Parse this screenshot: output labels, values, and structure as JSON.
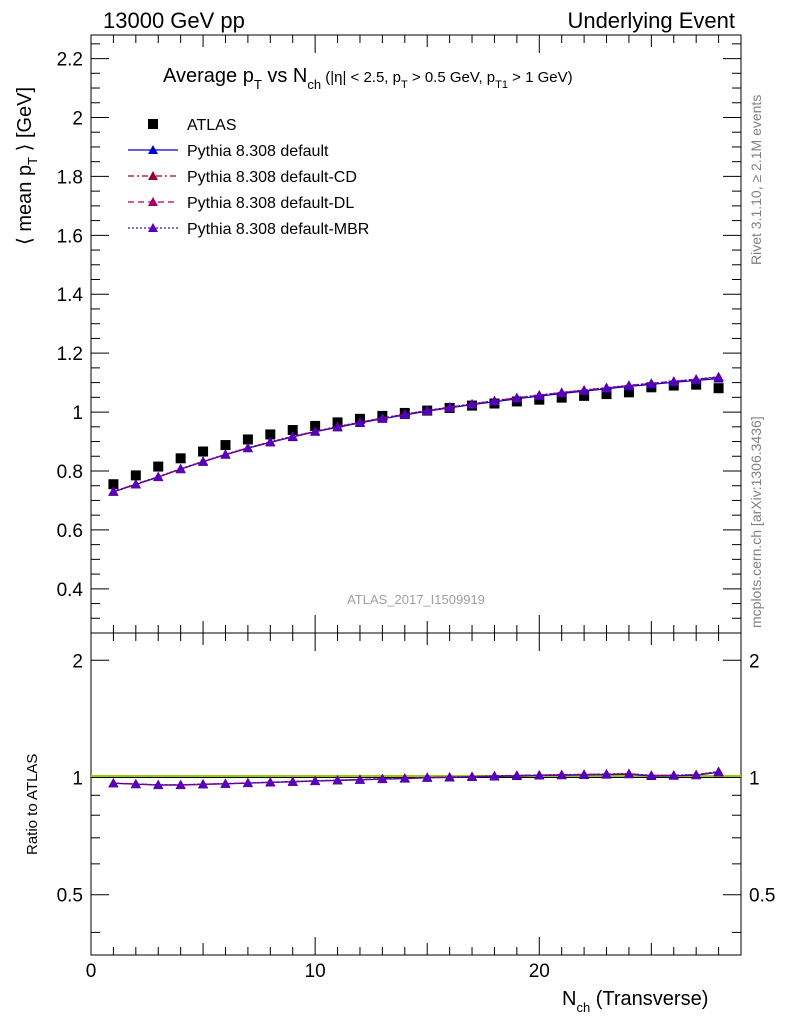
{
  "header": {
    "left": "13000 GeV pp",
    "right": "Underlying Event"
  },
  "side_labels": {
    "rivet": "Rivet 3.1.10, ≥ 2.1M events",
    "mcplots": "mcplots.cern.ch [arXiv:1306.3436]"
  },
  "watermark": "ATLAS_2017_I1509919",
  "colors": {
    "atlas": "#000000",
    "default": "#0000cc",
    "cd": "#990033",
    "dl": "#aa0066",
    "mbr": "#5500bb",
    "ratio_reference": "#99cc00"
  },
  "chart_data": [
    {
      "type": "scatter",
      "title": "Average p_T vs N_ch (|η| < 2.5, p_T > 0.5 GeV, p_T1 > 1 GeV)",
      "xlabel": "N_ch (Transverse)",
      "ylabel": "⟨ mean p_T ⟩ [GeV]",
      "xlim": [
        0,
        29
      ],
      "ylim": [
        0.25,
        2.28
      ],
      "yticks": [
        0.4,
        0.6,
        0.8,
        1,
        1.2,
        1.4,
        1.6,
        1.8,
        2,
        2.2
      ],
      "xticks": [
        0,
        10,
        20
      ],
      "legend_position": "top-left",
      "x": [
        1,
        2,
        3,
        4,
        5,
        6,
        7,
        8,
        9,
        10,
        11,
        12,
        13,
        14,
        15,
        16,
        17,
        18,
        19,
        20,
        21,
        22,
        23,
        24,
        25,
        26,
        27,
        28
      ],
      "series": [
        {
          "name": "ATLAS",
          "style": "square-marker",
          "values": [
            0.755,
            0.785,
            0.815,
            0.843,
            0.866,
            0.888,
            0.907,
            0.924,
            0.939,
            0.953,
            0.965,
            0.977,
            0.987,
            0.997,
            1.005,
            1.014,
            1.022,
            1.029,
            1.036,
            1.042,
            1.049,
            1.055,
            1.061,
            1.067,
            1.084,
            1.09,
            1.093,
            1.081
          ]
        },
        {
          "name": "Pythia 8.308 default",
          "style": "solid",
          "values": [
            0.729,
            0.754,
            0.779,
            0.806,
            0.831,
            0.855,
            0.877,
            0.897,
            0.915,
            0.933,
            0.948,
            0.963,
            0.977,
            0.99,
            1.003,
            1.014,
            1.025,
            1.035,
            1.045,
            1.054,
            1.063,
            1.071,
            1.079,
            1.087,
            1.094,
            1.101,
            1.107,
            1.114
          ]
        },
        {
          "name": "Pythia 8.308 default-CD",
          "style": "dash-dot",
          "values": [
            0.73,
            0.755,
            0.78,
            0.807,
            0.832,
            0.856,
            0.878,
            0.898,
            0.917,
            0.934,
            0.95,
            0.965,
            0.979,
            0.992,
            1.005,
            1.016,
            1.027,
            1.038,
            1.048,
            1.057,
            1.066,
            1.074,
            1.082,
            1.09,
            1.097,
            1.104,
            1.111,
            1.118
          ]
        },
        {
          "name": "Pythia 8.308 default-DL",
          "style": "dashed",
          "values": [
            0.73,
            0.755,
            0.78,
            0.807,
            0.832,
            0.856,
            0.878,
            0.898,
            0.917,
            0.934,
            0.95,
            0.965,
            0.979,
            0.992,
            1.005,
            1.016,
            1.027,
            1.038,
            1.048,
            1.057,
            1.066,
            1.074,
            1.082,
            1.09,
            1.097,
            1.104,
            1.111,
            1.119
          ]
        },
        {
          "name": "Pythia 8.308 default-MBR",
          "style": "dotted",
          "values": [
            0.731,
            0.756,
            0.781,
            0.808,
            0.833,
            0.857,
            0.879,
            0.899,
            0.918,
            0.935,
            0.951,
            0.966,
            0.98,
            0.993,
            1.006,
            1.017,
            1.028,
            1.039,
            1.049,
            1.058,
            1.067,
            1.075,
            1.083,
            1.091,
            1.098,
            1.105,
            1.112,
            1.12
          ]
        }
      ]
    },
    {
      "type": "line",
      "ylabel": "Ratio to ATLAS",
      "xlabel": "N_ch (Transverse)",
      "xlim": [
        0,
        29
      ],
      "ylim": [
        0.35,
        2.35
      ],
      "y_scale": "log",
      "yticks": [
        0.5,
        1,
        2
      ],
      "xticks": [
        0,
        10,
        20
      ],
      "reference_line": 1,
      "x": [
        1,
        2,
        3,
        4,
        5,
        6,
        7,
        8,
        9,
        10,
        11,
        12,
        13,
        14,
        15,
        16,
        17,
        18,
        19,
        20,
        21,
        22,
        23,
        24,
        25,
        26,
        27,
        28
      ],
      "series": [
        {
          "name": "Pythia 8.308 default",
          "style": "solid",
          "values": [
            0.966,
            0.961,
            0.956,
            0.956,
            0.96,
            0.963,
            0.967,
            0.971,
            0.974,
            0.979,
            0.982,
            0.986,
            0.99,
            0.993,
            0.998,
            1.0,
            1.003,
            1.006,
            1.009,
            1.012,
            1.013,
            1.015,
            1.017,
            1.019,
            1.009,
            1.01,
            1.013,
            1.031
          ]
        },
        {
          "name": "Pythia 8.308 default-CD",
          "style": "dash-dot",
          "values": [
            0.967,
            0.962,
            0.957,
            0.957,
            0.961,
            0.964,
            0.968,
            0.972,
            0.976,
            0.98,
            0.984,
            0.988,
            0.992,
            0.995,
            1.0,
            1.002,
            1.005,
            1.009,
            1.012,
            1.014,
            1.016,
            1.018,
            1.02,
            1.022,
            1.012,
            1.013,
            1.016,
            1.034
          ]
        },
        {
          "name": "Pythia 8.308 default-DL",
          "style": "dashed",
          "values": [
            0.967,
            0.962,
            0.957,
            0.957,
            0.961,
            0.964,
            0.968,
            0.972,
            0.976,
            0.98,
            0.984,
            0.988,
            0.992,
            0.995,
            1.0,
            1.002,
            1.005,
            1.009,
            1.012,
            1.014,
            1.016,
            1.018,
            1.02,
            1.022,
            1.012,
            1.013,
            1.016,
            1.035
          ]
        },
        {
          "name": "Pythia 8.308 default-MBR",
          "style": "dotted",
          "values": [
            0.968,
            0.963,
            0.958,
            0.958,
            0.962,
            0.965,
            0.969,
            0.973,
            0.977,
            0.981,
            0.985,
            0.989,
            0.993,
            0.996,
            1.001,
            1.003,
            1.006,
            1.01,
            1.013,
            1.015,
            1.017,
            1.019,
            1.021,
            1.023,
            1.013,
            1.014,
            1.017,
            1.036
          ]
        }
      ]
    }
  ]
}
